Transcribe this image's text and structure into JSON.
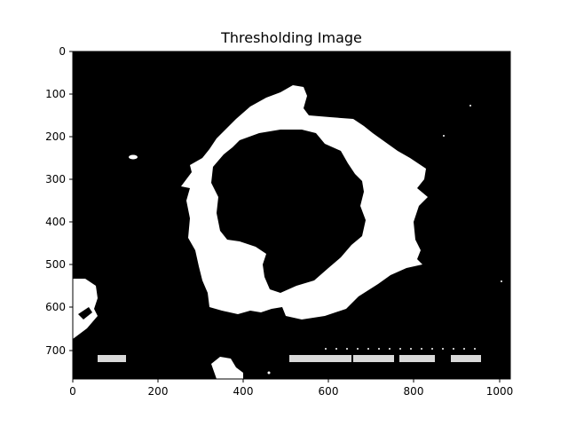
{
  "title": "Thresholding Image",
  "axes": {
    "x_ticks": [
      "0",
      "200",
      "400",
      "600",
      "800",
      "1000"
    ],
    "y_ticks": [
      "0",
      "100",
      "200",
      "300",
      "400",
      "500",
      "600",
      "700"
    ]
  },
  "image": {
    "description_colors": {
      "background": "#000000",
      "foreground": "#ffffff"
    }
  }
}
